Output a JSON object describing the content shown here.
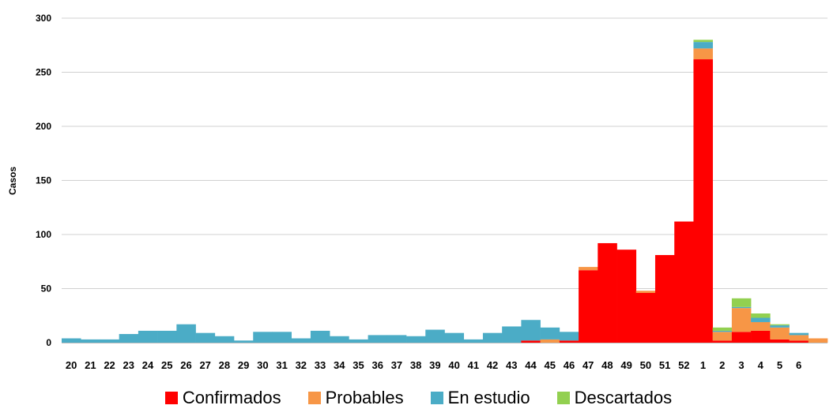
{
  "chart_data": {
    "type": "bar",
    "stacked": true,
    "ylabel": "Casos",
    "ylim": [
      0,
      300
    ],
    "yticks": [
      0,
      50,
      100,
      150,
      200,
      250,
      300
    ],
    "grid": true,
    "legend_position": "bottom",
    "categories": [
      "20",
      "21",
      "22",
      "23",
      "24",
      "25",
      "26",
      "27",
      "28",
      "29",
      "30",
      "31",
      "32",
      "33",
      "34",
      "35",
      "36",
      "37",
      "38",
      "39",
      "40",
      "41",
      "42",
      "43",
      "44",
      "45",
      "46",
      "47",
      "48",
      "49",
      "50",
      "51",
      "52",
      "1",
      "2",
      "3",
      "4",
      "5",
      "6",
      ""
    ],
    "series": [
      {
        "name": "Confirmados",
        "color": "#ff0000",
        "values": [
          0,
          0,
          0,
          0,
          0,
          0,
          0,
          0,
          0,
          0,
          0,
          0,
          0,
          0,
          0,
          0,
          0,
          0,
          0,
          0,
          0,
          0,
          0,
          0,
          2,
          0,
          2,
          67,
          92,
          86,
          46,
          81,
          112,
          262,
          2,
          10,
          11,
          3,
          2,
          0
        ]
      },
      {
        "name": "Probables",
        "color": "#f79646",
        "values": [
          0,
          0,
          0,
          0,
          0,
          0,
          0,
          0,
          0,
          0,
          0,
          0,
          0,
          0,
          0,
          0,
          0,
          0,
          0,
          0,
          0,
          0,
          0,
          0,
          0,
          3,
          0,
          3,
          0,
          0,
          2,
          0,
          0,
          10,
          8,
          22,
          8,
          11,
          5,
          4
        ]
      },
      {
        "name": "En estudio",
        "color": "#4bacc6",
        "values": [
          4,
          3,
          3,
          8,
          11,
          11,
          17,
          9,
          6,
          2,
          10,
          10,
          4,
          11,
          6,
          3,
          7,
          7,
          6,
          12,
          9,
          3,
          9,
          15,
          19,
          11,
          8,
          0,
          0,
          0,
          0,
          0,
          0,
          6,
          1,
          1,
          4,
          2,
          2,
          0
        ]
      },
      {
        "name": "Descartados",
        "color": "#92d050",
        "values": [
          0,
          0,
          0,
          0,
          0,
          0,
          0,
          0,
          0,
          0,
          0,
          0,
          0,
          0,
          0,
          0,
          0,
          0,
          0,
          0,
          0,
          0,
          0,
          0,
          0,
          0,
          0,
          0,
          0,
          0,
          0,
          0,
          0,
          2,
          3,
          8,
          4,
          1,
          0,
          0
        ]
      }
    ]
  }
}
